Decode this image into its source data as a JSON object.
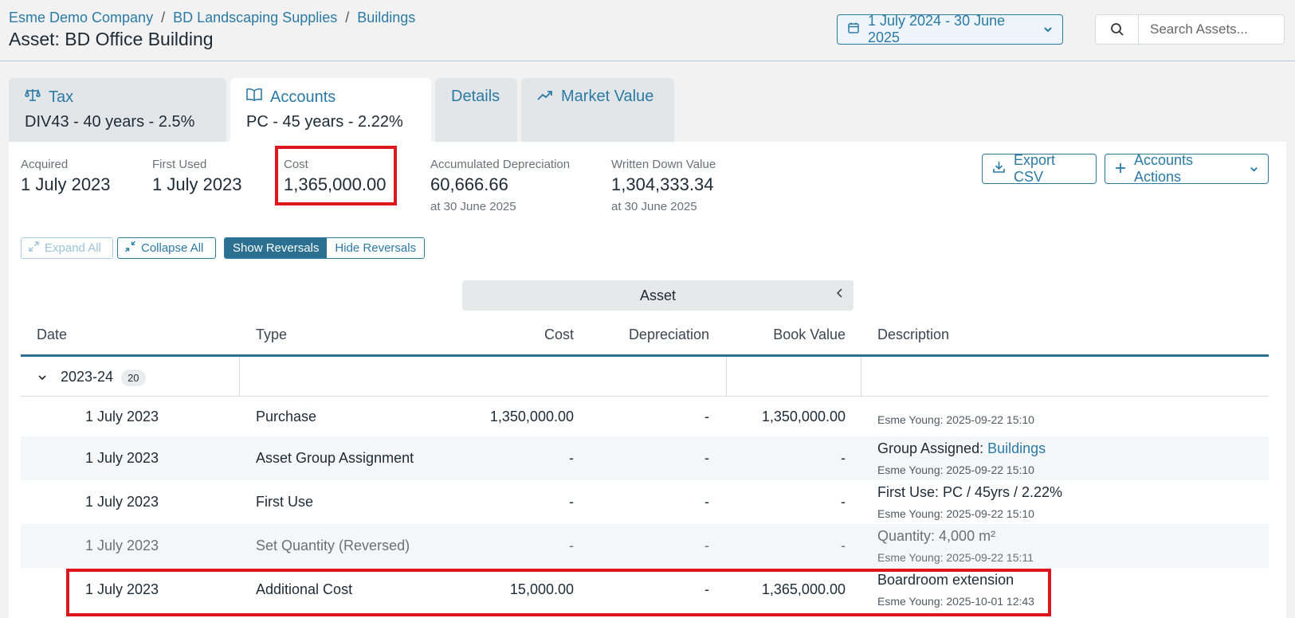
{
  "breadcrumb": [
    "Esme Demo Company",
    "BD Landscaping Supplies",
    "Buildings"
  ],
  "breadcrumb_sep": "/",
  "page_title": "Asset: BD Office Building",
  "date_range": "1 July 2024 - 30 June 2025",
  "search": {
    "placeholder": "Search Assets..."
  },
  "tabs": [
    {
      "label": "Tax",
      "sub": "DIV43 - 40 years - 2.5%",
      "icon": "scale-icon"
    },
    {
      "label": "Accounts",
      "sub": "PC - 45 years - 2.22%",
      "icon": "book-icon",
      "active": true
    },
    {
      "label": "Details",
      "sub": ""
    },
    {
      "label": "Market Value",
      "sub": "",
      "icon": "trending-up-icon"
    }
  ],
  "summary": {
    "acquired": {
      "label": "Acquired",
      "value": "1 July 2023"
    },
    "first_used": {
      "label": "First Used",
      "value": "1 July 2023"
    },
    "cost": {
      "label": "Cost",
      "value": "1,365,000.00"
    },
    "accum_dep": {
      "label": "Accumulated Depreciation",
      "value": "60,666.66",
      "sub": "at 30 June 2025"
    },
    "wdv": {
      "label": "Written Down Value",
      "value": "1,304,333.34",
      "sub": "at 30 June 2025"
    }
  },
  "actions": {
    "export": "Export CSV",
    "accounts_actions": "Accounts Actions"
  },
  "controls": {
    "expand_all": "Expand All",
    "collapse_all": "Collapse All",
    "show_reversals": "Show Reversals",
    "hide_reversals": "Hide Reversals"
  },
  "asset_header": "Asset",
  "table": {
    "headers": {
      "date": "Date",
      "type": "Type",
      "cost": "Cost",
      "depreciation": "Depreciation",
      "book_value": "Book Value",
      "description": "Description"
    },
    "group": {
      "label": "2023-24",
      "count": "20"
    },
    "rows": [
      {
        "date": "1 July 2023",
        "type": "Purchase",
        "cost": "1,350,000.00",
        "dep": "-",
        "book": "1,350,000.00",
        "desc": "",
        "desc_link_label": "",
        "desc_link": "",
        "meta": "Esme Young: 2025-09-22 15:10"
      },
      {
        "date": "1 July 2023",
        "type": "Asset Group Assignment",
        "cost": "-",
        "dep": "-",
        "book": "-",
        "desc": "Group Assigned: ",
        "desc_link": "Buildings",
        "meta": "Esme Young: 2025-09-22 15:10"
      },
      {
        "date": "1 July 2023",
        "type": "First Use",
        "cost": "-",
        "dep": "-",
        "book": "-",
        "desc": "First Use: PC / 45yrs / 2.22%",
        "desc_link": "",
        "meta": "Esme Young: 2025-09-22 15:10"
      },
      {
        "date": "1 July 2023",
        "type": "Set Quantity (Reversed)",
        "cost": "-",
        "dep": "-",
        "book": "-",
        "desc": "Quantity: 4,000 m²",
        "desc_link": "",
        "meta": "Esme Young: 2025-09-22 15:11"
      },
      {
        "date": "1 July 2023",
        "type": "Additional Cost",
        "cost": "15,000.00",
        "dep": "-",
        "book": "1,365,000.00",
        "desc": "Boardroom extension",
        "desc_link": "",
        "meta": "Esme Young: 2025-10-01 12:43"
      }
    ]
  },
  "colors": {
    "accent": "#2b7aa6",
    "highlight": "#e0161e",
    "header_line": "#2b6f91"
  }
}
